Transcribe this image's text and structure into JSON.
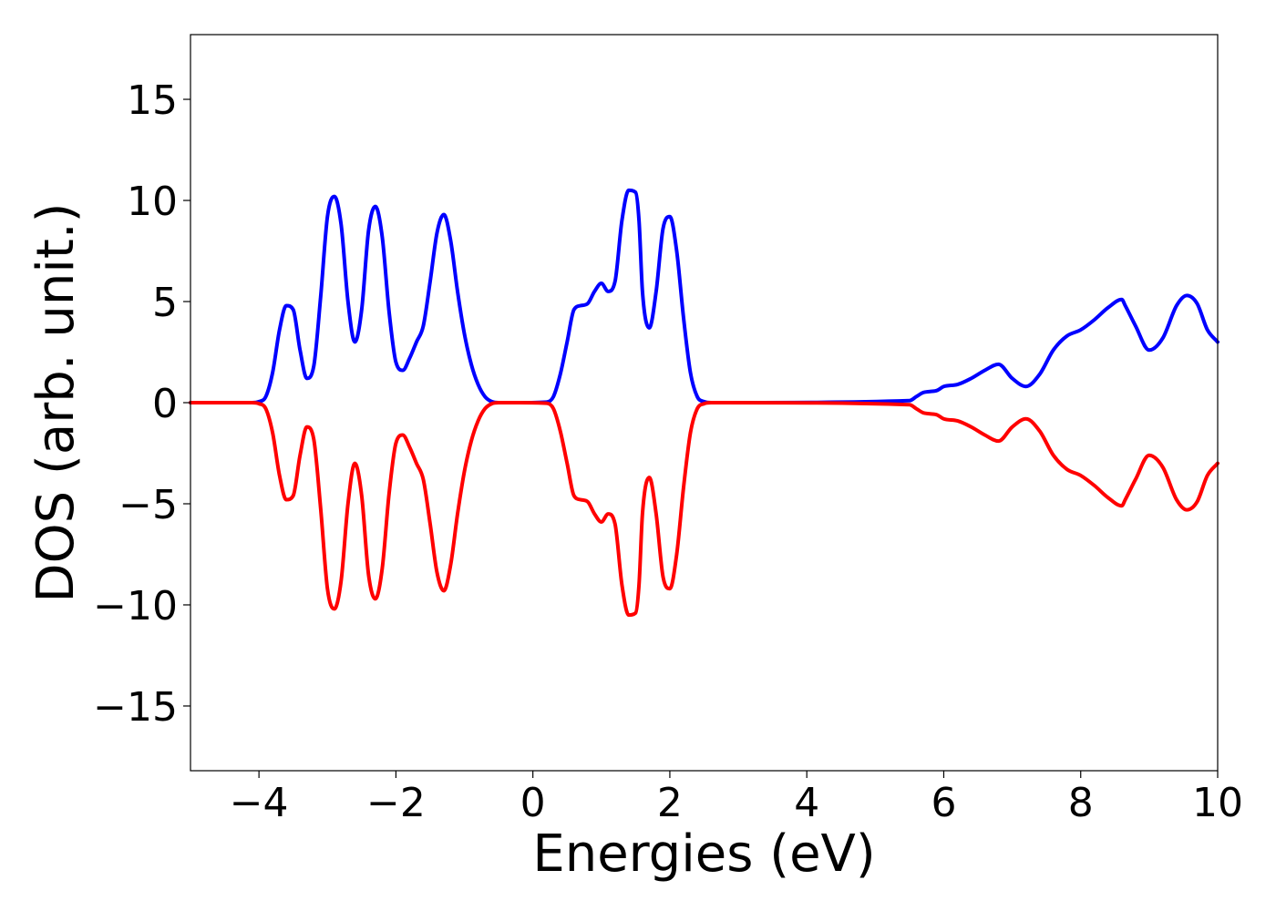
{
  "chart_data": {
    "type": "line",
    "title": "",
    "xlabel": "Energies (eV)",
    "ylabel": "DOS (arb. unit.)",
    "xlim": [
      -5,
      10
    ],
    "ylim": [
      -18.2,
      18.2
    ],
    "grid": false,
    "xticks": [
      {
        "value": -4,
        "label": "−4"
      },
      {
        "value": -2,
        "label": "−2"
      },
      {
        "value": 0,
        "label": "0"
      },
      {
        "value": 2,
        "label": "2"
      },
      {
        "value": 4,
        "label": "4"
      },
      {
        "value": 6,
        "label": "6"
      },
      {
        "value": 8,
        "label": "8"
      },
      {
        "value": 10,
        "label": "10"
      }
    ],
    "yticks": [
      {
        "value": -15,
        "label": "−15"
      },
      {
        "value": -10,
        "label": "−10"
      },
      {
        "value": -5,
        "label": "−5"
      },
      {
        "value": 0,
        "label": "0"
      },
      {
        "value": 5,
        "label": "5"
      },
      {
        "value": 10,
        "label": "10"
      },
      {
        "value": 15,
        "label": "15"
      }
    ],
    "series": [
      {
        "color": "#0000ff",
        "x": [
          -5,
          -4.1,
          -4.0,
          -3.9,
          -3.8,
          -3.7,
          -3.6,
          -3.5,
          -3.4,
          -3.3,
          -3.2,
          -3.1,
          -3.0,
          -2.9,
          -2.8,
          -2.7,
          -2.6,
          -2.5,
          -2.4,
          -2.3,
          -2.2,
          -2.1,
          -2.0,
          -1.9,
          -1.8,
          -1.7,
          -1.6,
          -1.5,
          -1.4,
          -1.3,
          -1.2,
          -1.1,
          -1.0,
          -0.9,
          -0.8,
          -0.7,
          -0.6,
          -0.5,
          -0.4,
          -0.3,
          -0.2,
          0.2,
          0.3,
          0.4,
          0.5,
          0.6,
          0.7,
          0.8,
          0.9,
          1.0,
          1.1,
          1.2,
          1.3,
          1.4,
          1.5,
          1.55,
          1.6,
          1.7,
          1.8,
          1.9,
          2.0,
          2.1,
          2.2,
          2.3,
          2.4,
          2.5,
          2.6,
          2.7,
          2.8,
          5.5,
          5.6,
          5.7,
          5.8,
          5.9,
          6.0,
          6.2,
          6.4,
          6.6,
          6.8,
          7.0,
          7.2,
          7.4,
          7.6,
          7.8,
          8.0,
          8.2,
          8.4,
          8.6,
          8.65,
          8.8,
          9.0,
          9.2,
          9.4,
          9.55,
          9.7,
          9.85,
          10.0
        ],
        "values": [
          0,
          0,
          0.05,
          0.3,
          1.5,
          3.6,
          4.8,
          4.6,
          2.6,
          1.2,
          1.8,
          5.2,
          9.2,
          10.2,
          8.8,
          5.0,
          3.0,
          4.6,
          8.5,
          9.7,
          8.2,
          4.5,
          2.0,
          1.6,
          2.2,
          3.0,
          3.8,
          6.0,
          8.4,
          9.3,
          8.0,
          5.5,
          3.4,
          1.9,
          0.9,
          0.3,
          0.05,
          0,
          0,
          0,
          0,
          0.03,
          0.3,
          1.4,
          3.0,
          4.6,
          4.8,
          4.9,
          5.5,
          5.9,
          5.5,
          6.0,
          9.0,
          10.5,
          10.4,
          9.0,
          5.5,
          3.7,
          5.5,
          8.6,
          9.2,
          7.5,
          4.2,
          1.5,
          0.3,
          0.05,
          0,
          0,
          0,
          0.1,
          0.3,
          0.5,
          0.55,
          0.6,
          0.8,
          0.9,
          1.2,
          1.6,
          1.9,
          1.2,
          0.8,
          1.4,
          2.6,
          3.3,
          3.6,
          4.1,
          4.7,
          5.1,
          4.8,
          3.8,
          2.6,
          3.2,
          4.8,
          5.3,
          4.9,
          3.6,
          3.0
        ]
      },
      {
        "color": "#ff0000",
        "x": [
          -5,
          -4.1,
          -4.0,
          -3.9,
          -3.8,
          -3.7,
          -3.6,
          -3.5,
          -3.4,
          -3.3,
          -3.2,
          -3.1,
          -3.0,
          -2.9,
          -2.8,
          -2.7,
          -2.6,
          -2.5,
          -2.4,
          -2.3,
          -2.2,
          -2.1,
          -2.0,
          -1.9,
          -1.8,
          -1.7,
          -1.6,
          -1.5,
          -1.4,
          -1.3,
          -1.2,
          -1.1,
          -1.0,
          -0.9,
          -0.8,
          -0.7,
          -0.6,
          -0.5,
          -0.4,
          -0.3,
          -0.2,
          0.2,
          0.3,
          0.4,
          0.5,
          0.6,
          0.7,
          0.8,
          0.9,
          1.0,
          1.1,
          1.2,
          1.3,
          1.4,
          1.5,
          1.55,
          1.6,
          1.7,
          1.8,
          1.9,
          2.0,
          2.1,
          2.2,
          2.3,
          2.4,
          2.5,
          2.6,
          2.7,
          2.8,
          5.5,
          5.6,
          5.7,
          5.8,
          5.9,
          6.0,
          6.2,
          6.4,
          6.6,
          6.8,
          7.0,
          7.2,
          7.4,
          7.6,
          7.8,
          8.0,
          8.2,
          8.4,
          8.6,
          8.65,
          8.8,
          9.0,
          9.2,
          9.4,
          9.55,
          9.7,
          9.85,
          10.0
        ],
        "values": [
          0,
          0,
          -0.05,
          -0.3,
          -1.5,
          -3.6,
          -4.8,
          -4.6,
          -2.6,
          -1.2,
          -1.8,
          -5.2,
          -9.2,
          -10.2,
          -8.8,
          -5.0,
          -3.0,
          -4.6,
          -8.5,
          -9.7,
          -8.2,
          -4.5,
          -2.0,
          -1.6,
          -2.2,
          -3.0,
          -3.8,
          -6.0,
          -8.4,
          -9.3,
          -8.0,
          -5.5,
          -3.4,
          -1.9,
          -0.9,
          -0.3,
          -0.05,
          0,
          0,
          0,
          0,
          -0.03,
          -0.3,
          -1.4,
          -3.0,
          -4.6,
          -4.8,
          -4.9,
          -5.5,
          -5.9,
          -5.5,
          -6.0,
          -9.0,
          -10.5,
          -10.4,
          -9.0,
          -5.5,
          -3.7,
          -5.5,
          -8.6,
          -9.2,
          -7.5,
          -4.2,
          -1.5,
          -0.3,
          -0.05,
          0,
          0,
          0,
          -0.1,
          -0.3,
          -0.5,
          -0.55,
          -0.6,
          -0.8,
          -0.9,
          -1.2,
          -1.6,
          -1.9,
          -1.2,
          -0.8,
          -1.4,
          -2.6,
          -3.3,
          -3.6,
          -4.1,
          -4.7,
          -5.1,
          -4.8,
          -3.8,
          -2.6,
          -3.2,
          -4.8,
          -5.3,
          -4.9,
          -3.6,
          -3.0
        ]
      }
    ]
  }
}
